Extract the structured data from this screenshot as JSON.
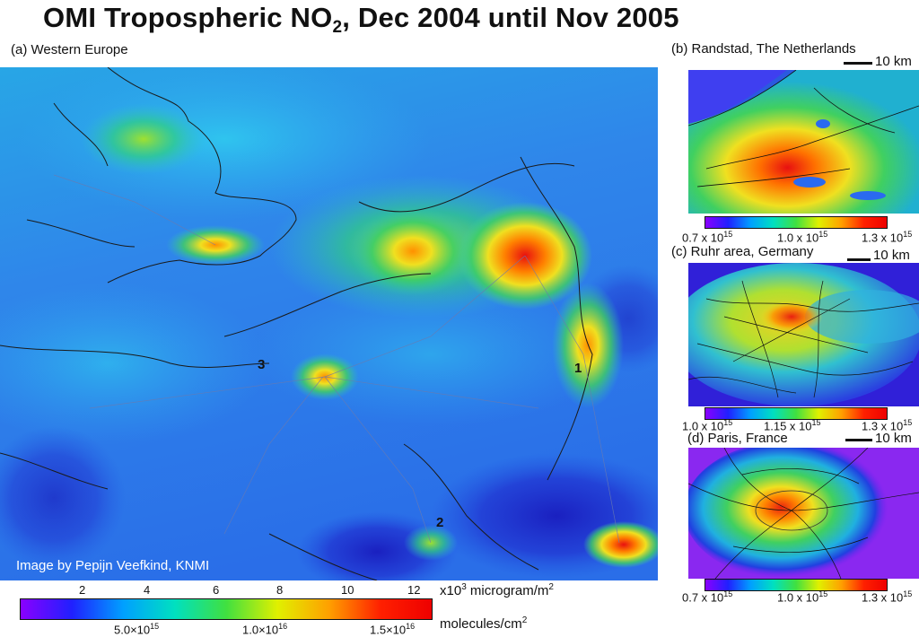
{
  "title": {
    "prefix": "OMI Tropospheric NO",
    "sub": "2",
    "suffix": ", Dec 2004 until Nov 2005"
  },
  "panels": {
    "a": {
      "label": "(a) Western Europe",
      "credit": "Image by Pepijn Veefkind, KNMI",
      "markers": [
        "1",
        "2",
        "3"
      ]
    },
    "b": {
      "label": "(b) Randstad, The Netherlands",
      "scale": "10 km",
      "colorbar_ticks": [
        {
          "mantissa": "0.7 x 10",
          "exp": "15"
        },
        {
          "mantissa": "1.0 x 10",
          "exp": "15"
        },
        {
          "mantissa": "1.3 x 10",
          "exp": "15"
        }
      ]
    },
    "c": {
      "label": "(c) Ruhr area, Germany",
      "scale": "10 km",
      "colorbar_ticks": [
        {
          "mantissa": "1.0 x 10",
          "exp": "15"
        },
        {
          "mantissa": "1.15 x 10",
          "exp": "15"
        },
        {
          "mantissa": "1.3 x 10",
          "exp": "15"
        }
      ]
    },
    "d": {
      "label": "(d) Paris, France",
      "scale": "10 km",
      "colorbar_ticks": [
        {
          "mantissa": "0.7 x 10",
          "exp": "15"
        },
        {
          "mantissa": "1.0 x 10",
          "exp": "15"
        },
        {
          "mantissa": "1.3 x 10",
          "exp": "15"
        }
      ]
    }
  },
  "colorbar": {
    "top_ticks": [
      "2",
      "4",
      "6",
      "8",
      "10",
      "12"
    ],
    "top_unit": {
      "prefix": "x10",
      "exp": "3",
      "mid": " microgram/m",
      "exp2": "2"
    },
    "bottom_ticks": [
      {
        "mantissa": "5.0×10",
        "exp": "15"
      },
      {
        "mantissa": "1.0×10",
        "exp": "16"
      },
      {
        "mantissa": "1.5×10",
        "exp": "16"
      }
    ],
    "bottom_unit": {
      "prefix": "molecules/cm",
      "exp": "2"
    },
    "colors": [
      "#8a00ff",
      "#2020ff",
      "#00a0ff",
      "#00e0c0",
      "#40e040",
      "#e0f000",
      "#ffa000",
      "#ff2000",
      "#ee0000"
    ]
  },
  "colors": {
    "map_base": "#2f7de8",
    "hotspot_red": "#e81810",
    "hotspot_yellow": "#f0e020",
    "coastline": "#1a1a1a"
  }
}
